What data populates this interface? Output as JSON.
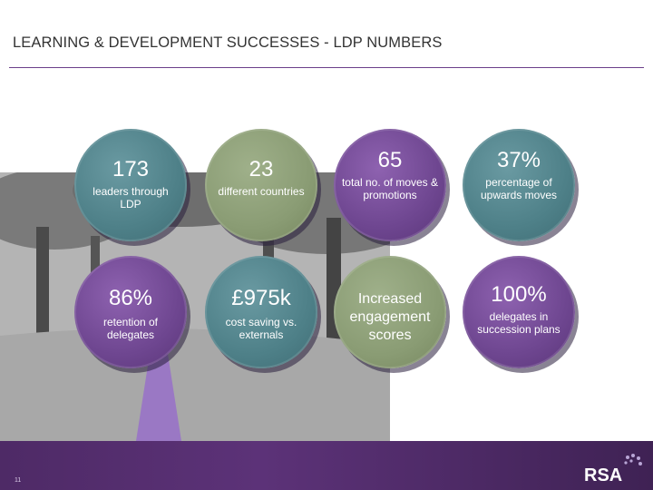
{
  "header": {
    "title": "LEARNING & DEVELOPMENT SUCCESSES - LDP NUMBERS"
  },
  "stats": [
    {
      "value": "173",
      "label": "leaders through LDP"
    },
    {
      "value": "23",
      "label": "different countries"
    },
    {
      "value": "65",
      "label": "total no. of moves & promotions"
    },
    {
      "value": "37%",
      "label": "percentage of upwards moves"
    },
    {
      "value": "86%",
      "label": "retention of delegates"
    },
    {
      "value": "£975k",
      "label": "cost saving vs. externals"
    },
    {
      "value": "Increased engagement scores",
      "label": ""
    },
    {
      "value": "100%",
      "label": "delegates in succession plans"
    }
  ],
  "footer": {
    "page_number": "11",
    "logo_text": "RSA"
  },
  "colors": {
    "purple": "#6e4690",
    "green": "#8a9c74",
    "teal": "#4e8088",
    "band": "#4e2a66"
  }
}
